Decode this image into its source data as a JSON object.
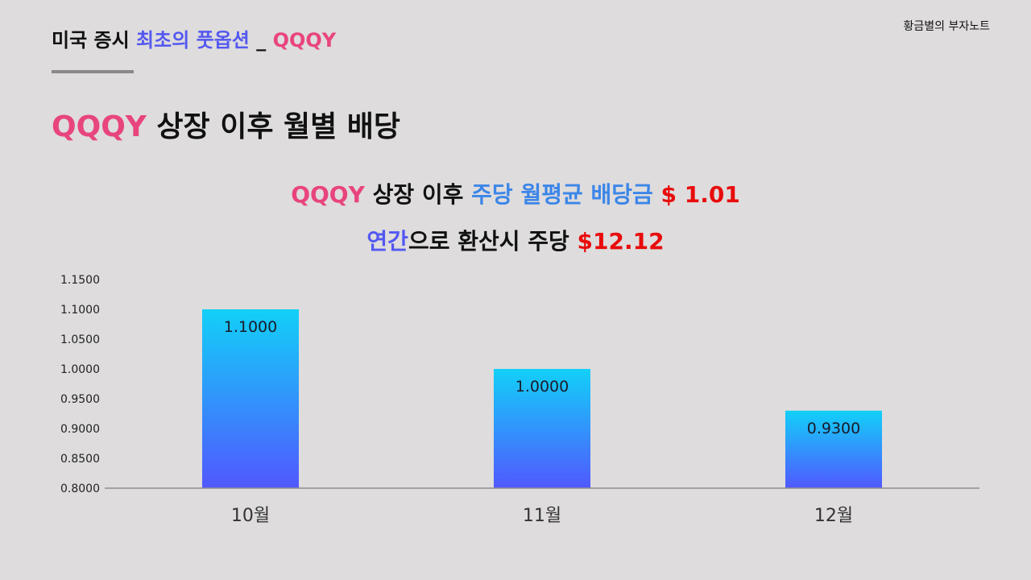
{
  "header": {
    "title_part1": "미국 증시 ",
    "title_part2": "최초의 풋옵션",
    "title_part3": " _ ",
    "title_part4": "QQQY",
    "brand": "황금별의 부자노트"
  },
  "heading": {
    "ticker": "QQQY",
    "text": " 상장 이후 월별 배당"
  },
  "summary": {
    "line1_ticker": "QQQY",
    "line1_mid": " 상장 이후 ",
    "line1_label": "주당 월평균 배당금",
    "line1_value": " $ 1.01",
    "line2_label": "연간",
    "line2_mid": "으로 환산시 주당 ",
    "line2_value": "$12.12"
  },
  "chart_data": {
    "type": "bar",
    "categories": [
      "10월",
      "11월",
      "12월"
    ],
    "values": [
      1.1,
      1.0,
      0.93
    ],
    "data_labels": [
      "1.1000",
      "1.0000",
      "0.9300"
    ],
    "ylim": [
      0.8,
      1.15
    ],
    "yticks": [
      0.8,
      0.85,
      0.9,
      0.95,
      1.0,
      1.05,
      1.1,
      1.15
    ],
    "ytick_labels": [
      "0.8000",
      "0.8500",
      "0.9000",
      "0.9500",
      "1.0000",
      "1.0500",
      "1.1000",
      "1.1500"
    ],
    "grid": false,
    "colors": {
      "bar_top": "#12d0f8",
      "bar_bottom": "#5158ff",
      "axis": "#8f8d8e"
    }
  }
}
